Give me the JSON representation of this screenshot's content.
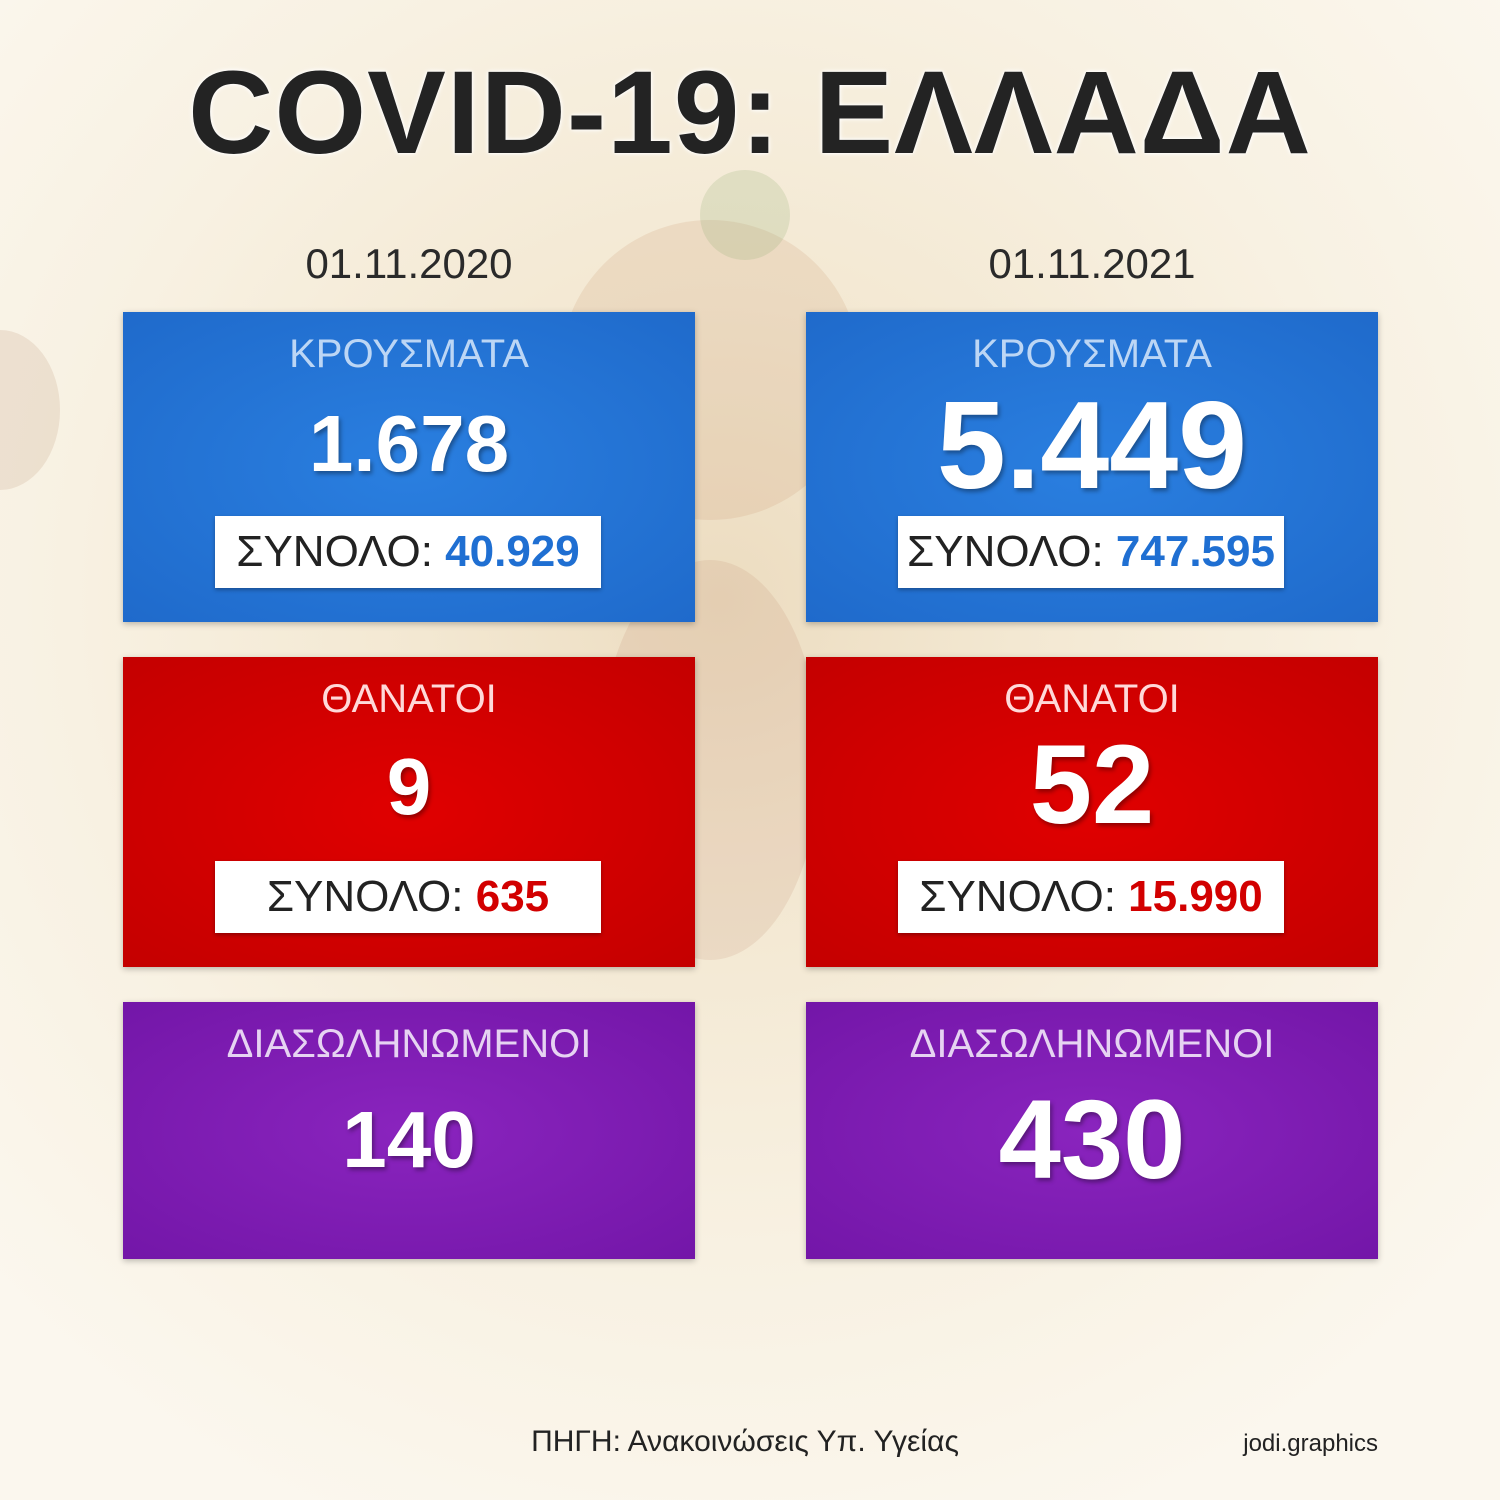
{
  "title": "COVID-19: ΕΛΛΑΔΑ",
  "columns": [
    {
      "date": "01.11.2020",
      "panels": [
        {
          "label": "ΚΡΟΥΣΜΑΤΑ",
          "value": "1.678",
          "total_label": "ΣΥΝΟΛΟ:",
          "total": "40.929"
        },
        {
          "label": "ΘΑΝΑΤΟΙ",
          "value": "9",
          "total_label": "ΣΥΝΟΛΟ:",
          "total": "635"
        },
        {
          "label": "ΔΙΑΣΩΛΗΝΩΜΕΝΟΙ",
          "value": "140"
        }
      ]
    },
    {
      "date": "01.11.2021",
      "panels": [
        {
          "label": "ΚΡΟΥΣΜΑΤΑ",
          "value": "5.449",
          "total_label": "ΣΥΝΟΛΟ:",
          "total": "747.595"
        },
        {
          "label": "ΘΑΝΑΤΟΙ",
          "value": "52",
          "total_label": "ΣΥΝΟΛΟ:",
          "total": "15.990"
        },
        {
          "label": "ΔΙΑΣΩΛΗΝΩΜΕΝΟΙ",
          "value": "430"
        }
      ]
    }
  ],
  "footer": {
    "source_label": "ΠΗΓΗ:",
    "source": "Ανακοινώσεις Υπ. Υγείας",
    "credit": "jodi.graphics"
  }
}
